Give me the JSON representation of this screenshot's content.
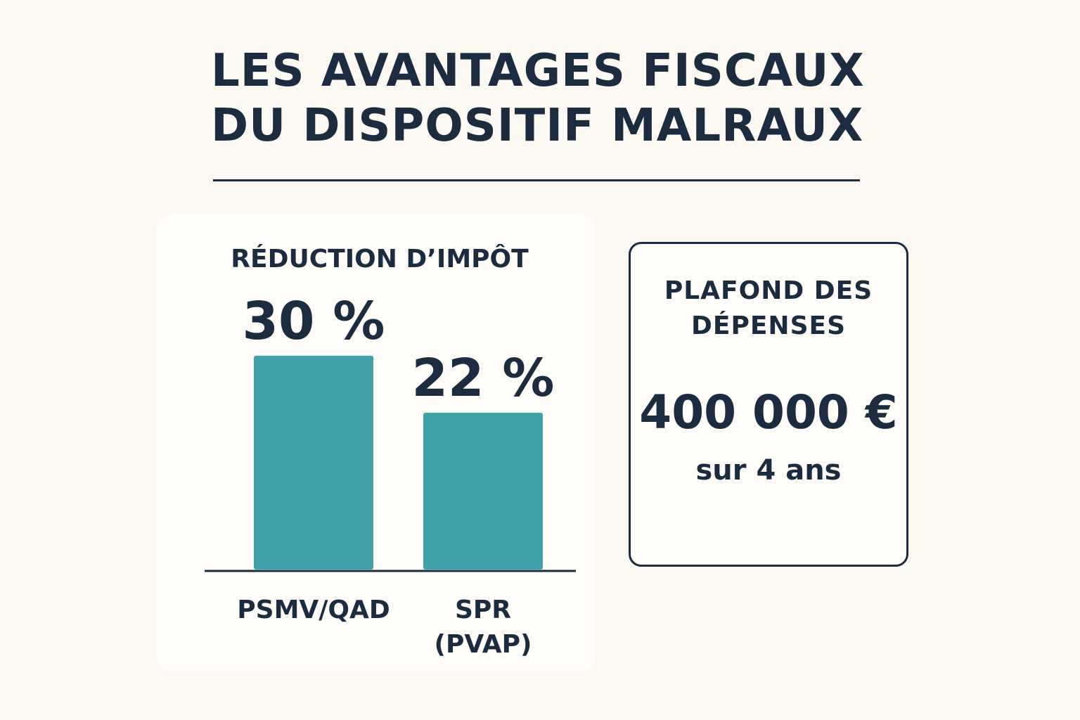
{
  "header": {
    "title_line1": "LES AVANTAGES FISCAUX",
    "title_line2": "DU DISPOSITIF MALRAUX"
  },
  "chart_data": {
    "type": "bar",
    "title": "RÉDUCTION D’IMPÔT",
    "categories": [
      "PSMV/QAD",
      "SPR\n(PVAP)"
    ],
    "values": [
      30,
      22
    ],
    "value_labels": [
      "30 %",
      "22 %"
    ],
    "unit": "%",
    "xlabel": "",
    "ylabel": "",
    "ylim": [
      0,
      36
    ],
    "grid": false,
    "bar_color": "#40a2a8",
    "axis_color": "#1b2b40"
  },
  "ceiling": {
    "title_line1": "PLAFOND DES",
    "title_line2": "DÉPENSES",
    "amount": "400 000 €",
    "period": "sur 4 ans"
  }
}
